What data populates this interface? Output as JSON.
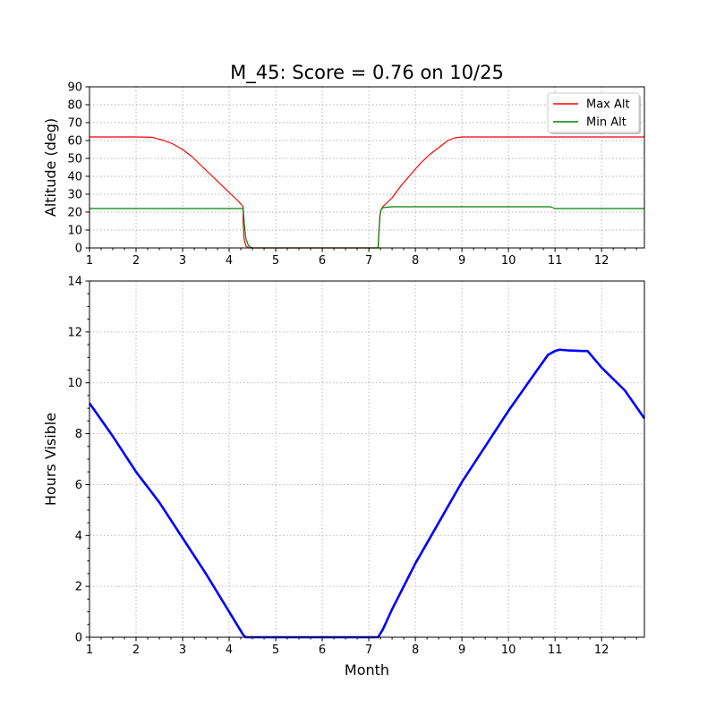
{
  "title": "M_45: Score = 0.76 on 10/25",
  "chart_data": [
    {
      "type": "line",
      "ylabel": "Altitude (deg)",
      "xlabel": "",
      "xlim": [
        1,
        12.92
      ],
      "ylim": [
        0,
        90
      ],
      "xticks": [
        1,
        2,
        3,
        4,
        5,
        6,
        7,
        8,
        9,
        10,
        11,
        12
      ],
      "yticks": [
        0,
        10,
        20,
        30,
        40,
        50,
        60,
        70,
        80,
        90
      ],
      "grid": true,
      "legend": "top-right",
      "series": [
        {
          "name": "Max Alt",
          "color": "#ff0000",
          "x": [
            1,
            2,
            2.35,
            2.6,
            2.8,
            3.0,
            3.2,
            3.4,
            3.6,
            3.8,
            4.0,
            4.2,
            4.3,
            4.3,
            4.32,
            4.36,
            4.42,
            4.5,
            7.2,
            7.22,
            7.24,
            7.26,
            7.3,
            7.5,
            7.7,
            7.9,
            8.1,
            8.3,
            8.5,
            8.7,
            8.85,
            9.0,
            9.3,
            10,
            11,
            12,
            12.92
          ],
          "y": [
            62,
            62,
            61.8,
            60,
            58,
            55,
            51,
            46,
            41,
            36,
            31,
            26,
            23,
            15,
            5,
            1,
            0,
            0,
            0,
            10,
            18,
            21,
            23,
            28,
            35,
            41,
            47,
            52,
            56,
            60,
            61.5,
            62,
            62,
            62,
            62,
            62,
            62
          ]
        },
        {
          "name": "Min Alt",
          "color": "#008000",
          "x": [
            1,
            2,
            3,
            4,
            4.25,
            4.3,
            4.32,
            4.36,
            4.42,
            4.5,
            7.2,
            7.22,
            7.24,
            7.26,
            7.3,
            7.5,
            8,
            9,
            10,
            10.9,
            11.0,
            11.2,
            12,
            12.92
          ],
          "y": [
            22,
            22,
            22,
            22,
            22,
            22,
            15,
            5,
            1,
            0,
            0,
            10,
            18,
            21,
            22.5,
            23,
            23,
            23,
            23,
            23,
            22,
            22,
            22,
            22
          ]
        }
      ]
    },
    {
      "type": "line",
      "ylabel": "Hours Visible",
      "xlabel": "Month",
      "xlim": [
        1,
        12.92
      ],
      "ylim": [
        0,
        14
      ],
      "xticks": [
        1,
        2,
        3,
        4,
        5,
        6,
        7,
        8,
        9,
        10,
        11,
        12
      ],
      "yticks": [
        0,
        2,
        4,
        6,
        8,
        10,
        12,
        14
      ],
      "grid": true,
      "series": [
        {
          "color": "#0000ff",
          "x": [
            1,
            1.5,
            2,
            2.5,
            3,
            3.5,
            4,
            4.3,
            4.35,
            7.2,
            7.3,
            7.5,
            8,
            8.5,
            9,
            9.5,
            10,
            10.5,
            10.85,
            11.0,
            11.1,
            11.3,
            11.6,
            11.7,
            12,
            12.5,
            12.92
          ],
          "y": [
            9.2,
            7.9,
            6.5,
            5.3,
            3.9,
            2.5,
            1.0,
            0.1,
            0,
            0,
            0.3,
            1.1,
            2.9,
            4.5,
            6.1,
            7.5,
            8.9,
            10.2,
            11.1,
            11.25,
            11.3,
            11.27,
            11.25,
            11.25,
            10.6,
            9.7,
            8.6
          ]
        }
      ]
    }
  ]
}
